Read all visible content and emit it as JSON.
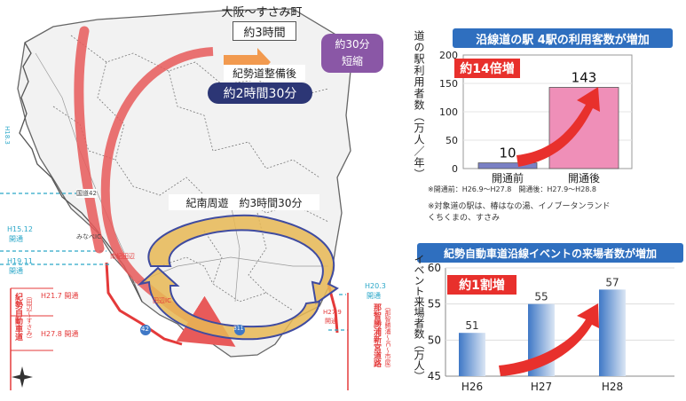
{
  "map": {
    "route_from_label": "大阪～すさみ町",
    "time_before": "約3時間",
    "time_after_caption": "紀勢道整備後",
    "time_after": "約2時間30分",
    "reduction_line1": "約30分",
    "reduction_line2": "短縮",
    "loop_label": "紀南周遊　約3時間30分",
    "left_labels": [
      "H18.3",
      "H15.12",
      "開通",
      "H19.11",
      "開通",
      "H21.7 開通",
      "H27.8 開通"
    ],
    "left_vertical_label": "紀勢自動車道",
    "left_vertical_sub": "（田辺～すさみ）",
    "right_labels": [
      "H20.3",
      "開通",
      "H27.9",
      "開通"
    ],
    "right_vertical_label": "那智勝浦新宮道路",
    "right_vertical_sub": "（那智勝浦～IC～市屋）",
    "small_labels": [
      "国道42",
      "みなべIC",
      "南紀田辺",
      "田辺IC"
    ],
    "route_numbers": [
      "42",
      "311"
    ],
    "colors": {
      "arrow": "#e85a5a",
      "loop": "#e7b955",
      "loop_border": "#3f4ba0",
      "navy": "#2c3675",
      "purple": "#8a57a6",
      "dash": "#2aa7c8",
      "red_line": "#e43a3a"
    }
  },
  "chart_data": [
    {
      "type": "bar",
      "title": "沿線道の駅 4駅の利用客数が増加",
      "ylabel": "道の駅利用者数（万人／年）",
      "categories": [
        "開通前",
        "開通後"
      ],
      "values": [
        10,
        143
      ],
      "ylim": [
        0,
        200
      ],
      "yticks": [
        0,
        50,
        100,
        150,
        200
      ],
      "badge": "約14倍増",
      "notes": [
        "※開通前：H26.9～H27.8　開通後：H27.9～H28.8",
        "※対象道の駅は、椿はなの湯、イノブータンランド",
        "くちくまの、すさみ"
      ],
      "colors": {
        "before": "#7a80c4",
        "after": "#ef8fb8",
        "badge": "#e8302c"
      }
    },
    {
      "type": "bar",
      "title": "紀勢自動車道沿線イベントの来場者数が増加",
      "ylabel": "イベント来場者数（万人）",
      "categories": [
        "H26",
        "H27",
        "H28"
      ],
      "values": [
        51,
        55,
        57
      ],
      "ylim": [
        45,
        60
      ],
      "yticks": [
        45,
        50,
        55,
        60
      ],
      "badge": "約1割増",
      "colors": {
        "bar_dark": "#3f78c6",
        "bar_light": "#dbe6f4",
        "badge": "#e8302c"
      }
    }
  ]
}
